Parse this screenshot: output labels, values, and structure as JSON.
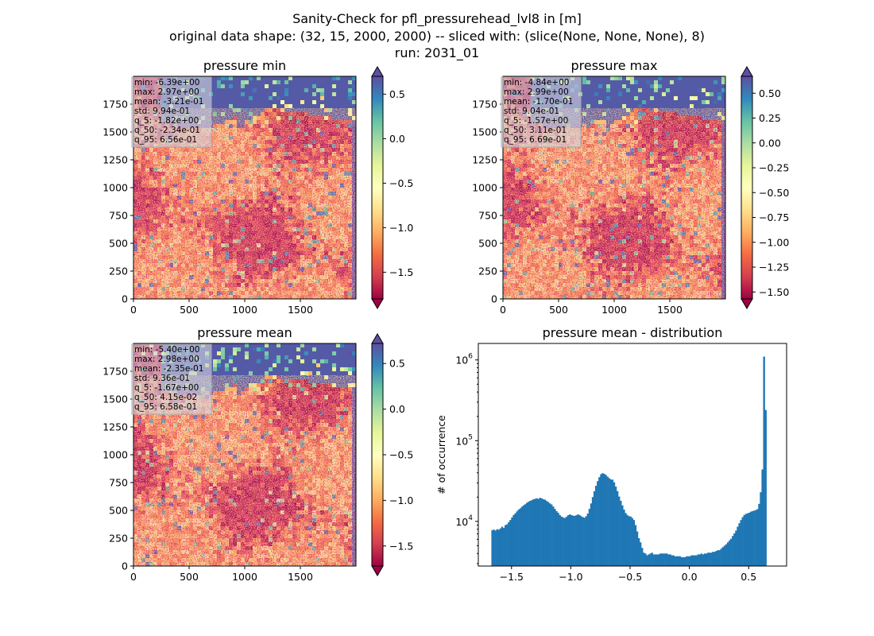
{
  "figure": {
    "title_lines": [
      "Sanity-Check for pfl_pressurehead_lvl8 in [m]",
      "original data shape: (32, 15, 2000, 2000) -- sliced with: (slice(None, None, None), 8)",
      "run: 2031_01"
    ]
  },
  "chart_data": [
    {
      "type": "heatmap",
      "title": "pressure min",
      "colormap": "Spectral",
      "xlim": [
        0,
        2000
      ],
      "ylim": [
        0,
        2000
      ],
      "xticks": [
        "0",
        "500",
        "1000",
        "1500"
      ],
      "yticks": [
        "0",
        "250",
        "500",
        "750",
        "1000",
        "1250",
        "1500",
        "1750"
      ],
      "colorbar": {
        "vmin": -1.8,
        "vmax": 0.7,
        "ticks": [
          "0.5",
          "0.0",
          "−0.5",
          "−1.0",
          "−1.5"
        ],
        "extend": "both"
      },
      "stats": [
        "min: -6.39e+00",
        "max: 2.97e+00",
        "mean: -3.21e-01",
        "std: 9.94e-01",
        "q_5: -1.82e+00",
        "q_50: -2.34e-01",
        "q_95: 6.56e-01"
      ]
    },
    {
      "type": "heatmap",
      "title": "pressure max",
      "colormap": "Spectral",
      "xlim": [
        0,
        2000
      ],
      "ylim": [
        0,
        2000
      ],
      "xticks": [
        "0",
        "500",
        "1000",
        "1500"
      ],
      "yticks": [
        "0",
        "250",
        "500",
        "750",
        "1000",
        "1250",
        "1500",
        "1750"
      ],
      "colorbar": {
        "vmin": -1.57,
        "vmax": 0.67,
        "ticks": [
          "0.50",
          "0.25",
          "0.00",
          "−0.25",
          "−0.50",
          "−0.75",
          "−1.00",
          "−1.25",
          "−1.50"
        ],
        "extend": "both"
      },
      "stats": [
        "min: -4.84e+00",
        "max: 2.99e+00",
        "mean: -1.70e-01",
        "std: 9.04e-01",
        "q_5: -1.57e+00",
        "q_50: 3.11e-01",
        "q_95: 6.69e-01"
      ]
    },
    {
      "type": "heatmap",
      "title": "pressure mean",
      "colormap": "Spectral",
      "xlim": [
        0,
        2000
      ],
      "ylim": [
        0,
        2000
      ],
      "xticks": [
        "0",
        "500",
        "1000",
        "1500"
      ],
      "yticks": [
        "0",
        "250",
        "500",
        "750",
        "1000",
        "1250",
        "1500",
        "1750"
      ],
      "colorbar": {
        "vmin": -1.72,
        "vmax": 0.72,
        "ticks": [
          "0.5",
          "0.0",
          "−0.5",
          "−1.0",
          "−1.5"
        ],
        "extend": "both"
      },
      "stats": [
        "min: -5.40e+00",
        "max: 2.98e+00",
        "mean: -2.35e-01",
        "std: 9.36e-01",
        "q_5: -1.67e+00",
        "q_50: 4.15e-02",
        "q_95: 6.58e-01"
      ]
    },
    {
      "type": "bar",
      "title": "pressure mean - distribution",
      "ylabel": "# of occurrence",
      "yscale": "log",
      "xlim": [
        -1.78,
        0.82
      ],
      "ylim": [
        2800,
        1600000
      ],
      "xticks": [
        "−1.5",
        "−1.0",
        "−0.5",
        "0.0",
        "0.5"
      ],
      "yticks": [
        "10^4",
        "10^5",
        "10^6"
      ],
      "color": "#1f77b4",
      "bins": [
        -1.67,
        0.65
      ],
      "counts": [
        7800,
        7900,
        7700,
        8000,
        7900,
        8200,
        8600,
        8300,
        9000,
        9200,
        9800,
        10400,
        11200,
        12000,
        12600,
        13300,
        14000,
        14500,
        15200,
        15800,
        16300,
        17000,
        17500,
        18000,
        18300,
        18800,
        19000,
        19300,
        19000,
        19600,
        19300,
        18800,
        18600,
        17900,
        17400,
        16700,
        16200,
        15300,
        14300,
        13400,
        12800,
        12000,
        11500,
        11200,
        11000,
        11400,
        11900,
        12200,
        12000,
        11800,
        11700,
        11900,
        12200,
        12000,
        11600,
        11300,
        11100,
        11600,
        12500,
        14300,
        16700,
        20000,
        23700,
        27600,
        31500,
        35300,
        38400,
        39600,
        38800,
        37600,
        35800,
        34300,
        33100,
        32900,
        30500,
        27000,
        23700,
        20300,
        18000,
        15800,
        14000,
        12700,
        12000,
        11600,
        11500,
        11000,
        10400,
        9000,
        7500,
        6200,
        5500,
        4700,
        4100,
        4000,
        3800,
        3900,
        4000,
        4100,
        3900,
        3900,
        3900,
        3900,
        4000,
        4000,
        4000,
        4000,
        4000,
        3900,
        3900,
        3800,
        3800,
        3700,
        3700,
        3700,
        3700,
        3600,
        3600,
        3600,
        3700,
        3700,
        3700,
        3800,
        3800,
        3800,
        3800,
        3900,
        3900,
        4000,
        3900,
        4000,
        4000,
        4100,
        4100,
        4100,
        4200,
        4200,
        4300,
        4400,
        4400,
        4600,
        4800,
        5000,
        5200,
        5500,
        5800,
        6100,
        6600,
        7100,
        7700,
        8600,
        9500,
        10400,
        11300,
        12000,
        12400,
        12600,
        12800,
        13200,
        13400,
        13600,
        13800,
        14200,
        16500,
        23000,
        44000,
        1100000,
        240000
      ]
    }
  ]
}
